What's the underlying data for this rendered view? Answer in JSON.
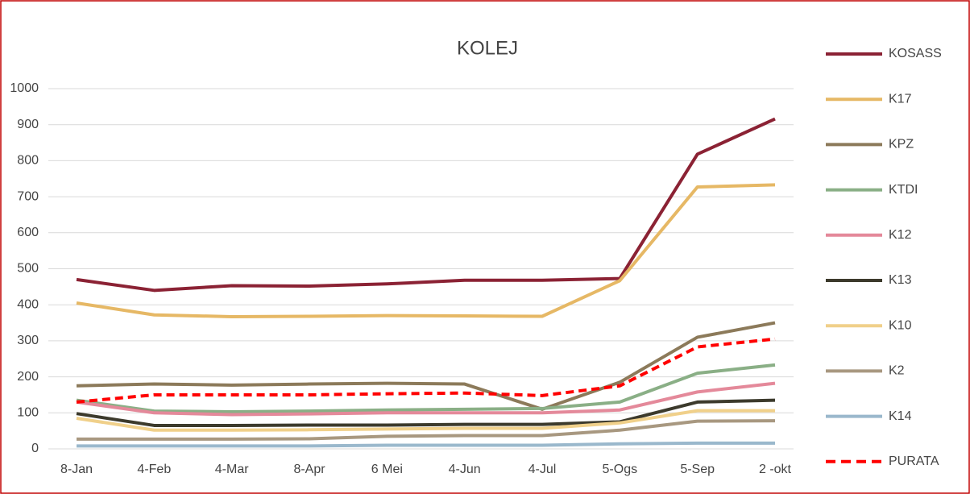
{
  "chart_data": {
    "type": "line",
    "title": "KOLEJ",
    "categories": [
      "8-Jan",
      "4-Feb",
      "4-Mar",
      "8-Apr",
      "6 Mei",
      "4-Jun",
      "4-Jul",
      "5-Ogs",
      "5-Sep",
      "2 -okt"
    ],
    "ylim": [
      0,
      1000
    ],
    "yticks": [
      0,
      100,
      200,
      300,
      400,
      500,
      600,
      700,
      800,
      900,
      1000
    ],
    "grid": true,
    "legend": "right",
    "series": [
      {
        "name": "KOSASS",
        "color": "#8b2234",
        "values": [
          470,
          440,
          453,
          452,
          458,
          468,
          468,
          473,
          818,
          916
        ]
      },
      {
        "name": "K17",
        "color": "#e6b865",
        "values": [
          405,
          372,
          367,
          368,
          370,
          369,
          368,
          467,
          727,
          733
        ]
      },
      {
        "name": "KPZ",
        "color": "#8c7a5a",
        "values": [
          175,
          180,
          177,
          180,
          182,
          180,
          110,
          185,
          310,
          350
        ]
      },
      {
        "name": "KTDI",
        "color": "#8aaf86",
        "values": [
          135,
          105,
          103,
          105,
          108,
          110,
          112,
          130,
          210,
          233
        ]
      },
      {
        "name": "K12",
        "color": "#e4899a",
        "values": [
          130,
          100,
          95,
          97,
          100,
          100,
          100,
          108,
          158,
          182
        ]
      },
      {
        "name": "K13",
        "color": "#3c3a2c",
        "values": [
          98,
          65,
          65,
          66,
          66,
          68,
          68,
          75,
          130,
          135
        ]
      },
      {
        "name": "K10",
        "color": "#f0d08a",
        "values": [
          85,
          52,
          52,
          53,
          55,
          57,
          57,
          72,
          106,
          106
        ]
      },
      {
        "name": "K2",
        "color": "#a89880",
        "values": [
          27,
          27,
          27,
          28,
          35,
          37,
          37,
          52,
          77,
          78
        ]
      },
      {
        "name": "K14",
        "color": "#9ab8cc",
        "values": [
          8,
          8,
          8,
          8,
          10,
          10,
          10,
          14,
          16,
          16
        ]
      },
      {
        "name": "PURATA",
        "color": "#ff0000",
        "dashed": true,
        "values": [
          130,
          150,
          150,
          150,
          153,
          155,
          148,
          175,
          283,
          305
        ]
      }
    ]
  }
}
